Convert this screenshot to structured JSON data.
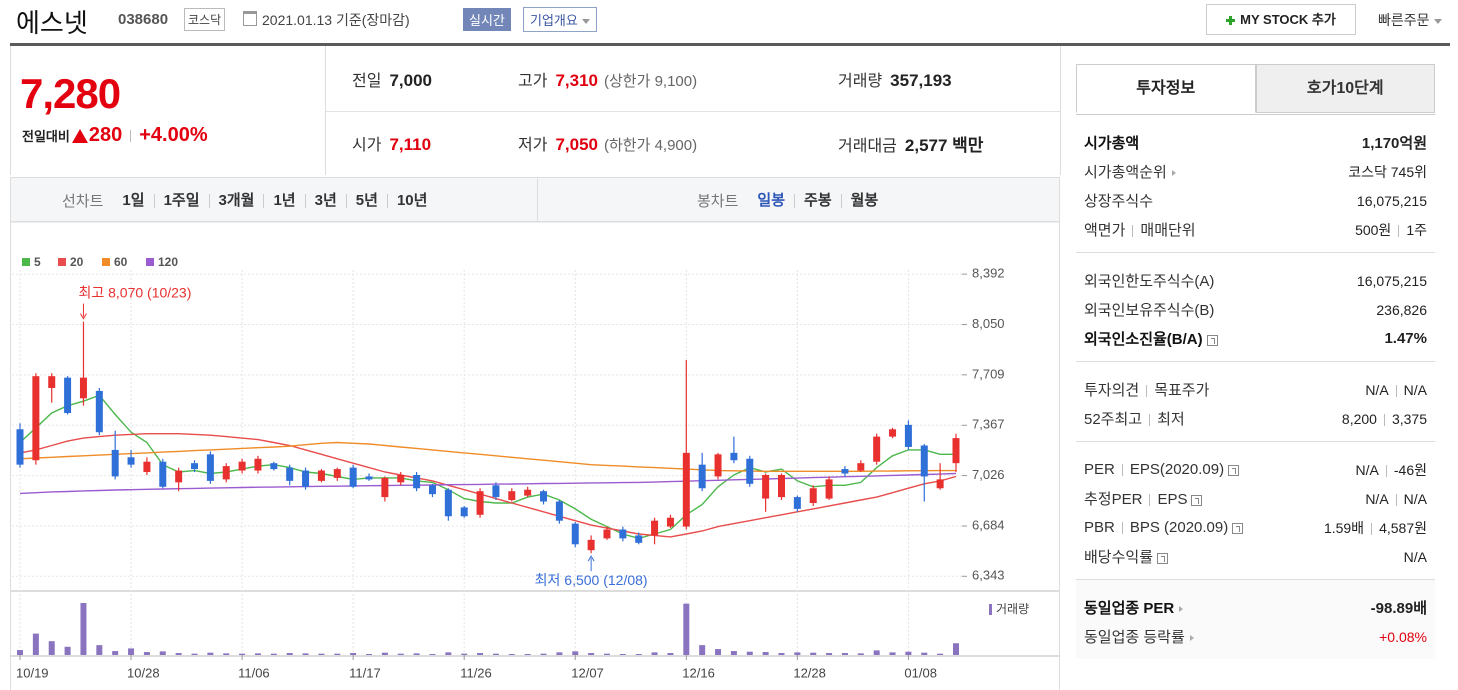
{
  "header": {
    "title": "에스넷",
    "code": "038680",
    "market": "코스닥",
    "date": "2021.01.13 기준(장마감)",
    "realtime": "실시간",
    "overview": "기업개요",
    "mystock": "MY STOCK 추가",
    "quick_order": "빠른주문"
  },
  "price": {
    "current": "7,280",
    "change_label": "전일대비",
    "change": "280",
    "change_rate": "+4.00%"
  },
  "summary": [
    {
      "label": "전일",
      "value": "7,000",
      "color": "#222"
    },
    {
      "label": "고가",
      "value": "7,310",
      "extra": "(상한가 9,100)",
      "color": "#e0000f"
    },
    {
      "label": "거래량",
      "value": "357,193",
      "color": "#222"
    },
    {
      "label": "시가",
      "value": "7,110",
      "color": "#e0000f"
    },
    {
      "label": "저가",
      "value": "7,050",
      "extra": "(하한가 4,900)",
      "color": "#e0000f"
    },
    {
      "label": "거래대금",
      "value": "2,577 백만",
      "color": "#222"
    }
  ],
  "chart_tabs": {
    "line_label": "선차트",
    "line_periods": [
      "1일",
      "1주일",
      "3개월",
      "1년",
      "3년",
      "5년",
      "10년"
    ],
    "candle_label": "봉차트",
    "candle_periods": [
      "일봉",
      "주봉",
      "월봉"
    ],
    "candle_selected": 0
  },
  "info_tabs": {
    "items": [
      "투자정보",
      "호가10단계"
    ],
    "selected": 0
  },
  "info_groups": [
    {
      "rows": [
        {
          "label": [
            "시가총액"
          ],
          "value": [
            "1,170억원"
          ],
          "bold": true
        },
        {
          "label": [
            "시가총액순위"
          ],
          "value": [
            "코스닥 745위"
          ],
          "arrow": true
        },
        {
          "label": [
            "상장주식수"
          ],
          "value": [
            "16,075,215"
          ]
        },
        {
          "label": [
            "액면가",
            "매매단위"
          ],
          "value": [
            "500원",
            "1주"
          ]
        }
      ]
    },
    {
      "rows": [
        {
          "label": [
            "외국인한도주식수(A)"
          ],
          "value": [
            "16,075,215"
          ]
        },
        {
          "label": [
            "외국인보유주식수(B)"
          ],
          "value": [
            "236,826"
          ]
        },
        {
          "label": [
            "외국인소진율(B/A)"
          ],
          "value": [
            "1.47%"
          ],
          "bold": true,
          "help": true
        }
      ]
    },
    {
      "rows": [
        {
          "label": [
            "투자의견",
            "목표주가"
          ],
          "value": [
            "N/A",
            "N/A"
          ]
        },
        {
          "label": [
            "52주최고",
            "최저"
          ],
          "value": [
            "8,200",
            "3,375"
          ]
        }
      ]
    },
    {
      "rows": [
        {
          "label": [
            "PER",
            "EPS(2020.09)"
          ],
          "value": [
            "N/A",
            "-46원"
          ],
          "help": true
        },
        {
          "label": [
            "추정PER",
            "EPS"
          ],
          "value": [
            "N/A",
            "N/A"
          ],
          "help": true
        },
        {
          "label": [
            "PBR",
            "BPS (2020.09)"
          ],
          "value": [
            "1.59배",
            "4,587원"
          ],
          "help": true
        },
        {
          "label": [
            "배당수익률"
          ],
          "value": [
            "N/A"
          ],
          "help": true
        }
      ]
    },
    {
      "rows": [
        {
          "label": [
            "동일업종 PER"
          ],
          "value": [
            "-98.89배"
          ],
          "arrow": true,
          "bold": true
        },
        {
          "label": [
            "동일업종 등락률"
          ],
          "value": [
            "+0.08%"
          ],
          "arrow": true,
          "color": "#e0000f"
        }
      ]
    }
  ],
  "chart_data": {
    "type": "candlestick",
    "categories": [
      "10/19",
      null,
      null,
      null,
      null,
      null,
      null,
      "10/28",
      null,
      null,
      null,
      null,
      null,
      null,
      "11/06",
      null,
      null,
      null,
      null,
      null,
      null,
      "11/17",
      null,
      null,
      null,
      null,
      null,
      null,
      "11/26",
      null,
      null,
      null,
      null,
      null,
      null,
      "12/07",
      null,
      null,
      null,
      null,
      null,
      null,
      "12/16",
      null,
      null,
      null,
      null,
      null,
      null,
      "12/28",
      null,
      null,
      null,
      null,
      null,
      null,
      "01/08",
      null,
      null,
      null
    ],
    "open": [
      7340,
      7130,
      7620,
      7690,
      7550,
      7600,
      7200,
      7150,
      7050,
      7120,
      6980,
      7110,
      7170,
      7000,
      7060,
      7060,
      7110,
      7080,
      7060,
      6990,
      7010,
      7080,
      7020,
      6880,
      6980,
      7030,
      6960,
      6930,
      6810,
      6760,
      6960,
      6860,
      6890,
      6920,
      6850,
      6700,
      6520,
      6600,
      6660,
      6620,
      6620,
      6680,
      6680,
      7100,
      7020,
      7180,
      7140,
      6870,
      6880,
      6880,
      6840,
      6870,
      7070,
      7060,
      7120,
      7290,
      7370,
      7230,
      6940,
      7110
    ],
    "high": [
      7380,
      7720,
      7720,
      7700,
      8070,
      7620,
      7330,
      7200,
      7150,
      7140,
      7080,
      7130,
      7190,
      7110,
      7140,
      7160,
      7120,
      7100,
      7080,
      7070,
      7080,
      7100,
      7040,
      7020,
      7050,
      7050,
      6970,
      6940,
      6820,
      6940,
      6980,
      6940,
      6950,
      6930,
      6860,
      6710,
      6620,
      6680,
      6680,
      6640,
      6740,
      6760,
      7810,
      7180,
      7180,
      7290,
      7160,
      7040,
      7040,
      6890,
      6960,
      7020,
      7090,
      7130,
      7310,
      7350,
      7400,
      7240,
      7110,
      7310
    ],
    "low": [
      7080,
      7100,
      7520,
      7440,
      7500,
      7300,
      7000,
      7080,
      7030,
      6940,
      6920,
      7050,
      6970,
      6980,
      7040,
      7040,
      7060,
      6960,
      6930,
      6980,
      6990,
      6940,
      6990,
      6850,
      6960,
      6920,
      6880,
      6720,
      6740,
      6740,
      6860,
      6850,
      6880,
      6830,
      6700,
      6540,
      6500,
      6590,
      6580,
      6560,
      6560,
      6670,
      6660,
      6920,
      7000,
      7110,
      6950,
      6780,
      6860,
      6780,
      6820,
      6860,
      7020,
      7050,
      7100,
      7280,
      7200,
      6850,
      6930,
      7050
    ],
    "close": [
      7100,
      7700,
      7700,
      7450,
      7690,
      7320,
      7020,
      7100,
      7120,
      6950,
      7060,
      7070,
      6990,
      7090,
      7120,
      7140,
      7070,
      6990,
      6950,
      7060,
      7070,
      6950,
      7000,
      7010,
      7030,
      6940,
      6900,
      6750,
      6750,
      6920,
      6880,
      6920,
      6930,
      6850,
      6720,
      6560,
      6590,
      6660,
      6600,
      6570,
      6720,
      6740,
      7180,
      6940,
      7170,
      7130,
      6970,
      7030,
      7030,
      6800,
      6940,
      7000,
      7040,
      7110,
      7290,
      7340,
      7220,
      7020,
      7000,
      7280
    ],
    "volume": [
      150000,
      650000,
      420000,
      250000,
      1580000,
      300000,
      120000,
      200000,
      90000,
      110000,
      60000,
      40000,
      70000,
      50000,
      40000,
      50000,
      40000,
      60000,
      50000,
      40000,
      40000,
      60000,
      30000,
      70000,
      40000,
      50000,
      30000,
      80000,
      40000,
      60000,
      40000,
      30000,
      30000,
      40000,
      80000,
      110000,
      60000,
      40000,
      30000,
      30000,
      80000,
      60000,
      1560000,
      300000,
      180000,
      120000,
      100000,
      90000,
      60000,
      80000,
      70000,
      60000,
      60000,
      50000,
      140000,
      80000,
      100000,
      70000,
      40000,
      357193
    ],
    "volume_label": "거래량",
    "volume_color": "#8a74c0",
    "series": [
      {
        "name": "5",
        "color": "#4cb84c",
        "values": [
          7250,
          7350,
          7450,
          7500,
          7530,
          7570,
          7440,
          7320,
          7250,
          7100,
          7050,
          7060,
          7040,
          7050,
          7070,
          7090,
          7100,
          7080,
          7050,
          7040,
          7020,
          7000,
          7010,
          7010,
          7010,
          6990,
          6980,
          6930,
          6870,
          6850,
          6840,
          6840,
          6880,
          6900,
          6860,
          6800,
          6730,
          6680,
          6630,
          6600,
          6630,
          6660,
          6760,
          6830,
          6950,
          7030,
          7080,
          7050,
          7070,
          6990,
          6950,
          6960,
          6960,
          6980,
          7080,
          7160,
          7200,
          7200,
          7170,
          7170
        ]
      },
      {
        "name": "20",
        "color": "#e84c4c",
        "values": [
          7180,
          7200,
          7230,
          7260,
          7280,
          7290,
          7300,
          7305,
          7310,
          7310,
          7310,
          7305,
          7300,
          7290,
          7280,
          7270,
          7250,
          7230,
          7200,
          7170,
          7140,
          7110,
          7080,
          7050,
          7030,
          7010,
          6990,
          6960,
          6930,
          6900,
          6870,
          6840,
          6810,
          6780,
          6750,
          6720,
          6690,
          6670,
          6650,
          6630,
          6620,
          6610,
          6630,
          6650,
          6680,
          6700,
          6720,
          6740,
          6760,
          6780,
          6800,
          6820,
          6840,
          6860,
          6880,
          6910,
          6940,
          6970,
          6990,
          7020
        ]
      },
      {
        "name": "60",
        "color": "#f08c28",
        "values": [
          7140,
          7145,
          7150,
          7155,
          7160,
          7165,
          7170,
          7175,
          7180,
          7185,
          7190,
          7195,
          7200,
          7205,
          7210,
          7215,
          7220,
          7225,
          7235,
          7245,
          7250,
          7245,
          7240,
          7230,
          7220,
          7210,
          7200,
          7190,
          7180,
          7170,
          7160,
          7150,
          7140,
          7130,
          7120,
          7110,
          7100,
          7095,
          7090,
          7085,
          7080,
          7075,
          7070,
          7065,
          7060,
          7058,
          7056,
          7055,
          7055,
          7055,
          7055,
          7055,
          7055,
          7055,
          7056,
          7057,
          7058,
          7059,
          7060,
          7060
        ]
      },
      {
        "name": "120",
        "color": "#9a5cd0",
        "values": [
          6905,
          6910,
          6915,
          6918,
          6922,
          6925,
          6928,
          6930,
          6933,
          6935,
          6937,
          6939,
          6941,
          6943,
          6945,
          6947,
          6948,
          6950,
          6951,
          6953,
          6954,
          6956,
          6957,
          6958,
          6960,
          6961,
          6962,
          6964,
          6965,
          6966,
          6968,
          6969,
          6970,
          6972,
          6973,
          6974,
          6976,
          6977,
          6978,
          6980,
          6982,
          6985,
          6988,
          6991,
          6994,
          6997,
          7000,
          7003,
          7006,
          7009,
          7012,
          7015,
          7018,
          7021,
          7024,
          7027,
          7030,
          7033,
          7036,
          7040
        ]
      }
    ],
    "ylim": [
      6250,
      8420
    ],
    "yticks": [
      {
        "value": 6343,
        "label": "6,343"
      },
      {
        "value": 6684,
        "label": "6,684"
      },
      {
        "value": 7026,
        "label": "7,026"
      },
      {
        "value": 7367,
        "label": "7,367"
      },
      {
        "value": 7709,
        "label": "7,709"
      },
      {
        "value": 8050,
        "label": "8,050"
      },
      {
        "value": 8392,
        "label": "8,392"
      }
    ],
    "grid": true,
    "up_color": "#e8302f",
    "down_color": "#2f6fd8",
    "max_label": "최고 8,070 (10/23)",
    "max_color": "#e8302f",
    "min_label": "최저 6,500 (12/08)",
    "min_color": "#3a6ed8"
  }
}
